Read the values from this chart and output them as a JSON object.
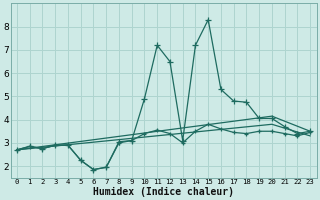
{
  "xlabel": "Humidex (Indice chaleur)",
  "bg_color": "#ceeae6",
  "grid_color": "#aed4cf",
  "line_color": "#1e6b60",
  "xlim": [
    -0.5,
    23.5
  ],
  "ylim": [
    1.5,
    9.0
  ],
  "xticks": [
    0,
    1,
    2,
    3,
    4,
    5,
    6,
    7,
    8,
    9,
    10,
    11,
    12,
    13,
    14,
    15,
    16,
    17,
    18,
    19,
    20,
    21,
    22,
    23
  ],
  "yticks": [
    2,
    3,
    4,
    5,
    6,
    7,
    8
  ],
  "line1_x": [
    0,
    1,
    2,
    3,
    4,
    5,
    6,
    7,
    8,
    9,
    10,
    11,
    12,
    13,
    14,
    15,
    16,
    17,
    18,
    19,
    20,
    21,
    22,
    23
  ],
  "line1_y": [
    2.7,
    2.85,
    2.75,
    2.9,
    2.9,
    2.25,
    1.85,
    1.95,
    3.05,
    3.1,
    4.9,
    7.2,
    6.5,
    3.1,
    7.2,
    8.3,
    5.3,
    4.8,
    4.75,
    4.05,
    4.05,
    3.7,
    3.4,
    3.5
  ],
  "line2_x": [
    0,
    1,
    2,
    3,
    4,
    5,
    6,
    7,
    8,
    9,
    10,
    11,
    12,
    13,
    14,
    15,
    16,
    17,
    18,
    19,
    20,
    21,
    22,
    23
  ],
  "line2_y": [
    2.7,
    2.85,
    2.75,
    2.9,
    2.9,
    2.25,
    1.85,
    1.95,
    3.0,
    3.1,
    3.4,
    3.55,
    3.4,
    3.0,
    3.5,
    3.8,
    3.6,
    3.45,
    3.4,
    3.5,
    3.5,
    3.4,
    3.3,
    3.45
  ],
  "line3_x": [
    0,
    20,
    23
  ],
  "line3_y": [
    2.7,
    4.15,
    3.5
  ],
  "line4_x": [
    0,
    20,
    23
  ],
  "line4_y": [
    2.7,
    3.8,
    3.3
  ]
}
